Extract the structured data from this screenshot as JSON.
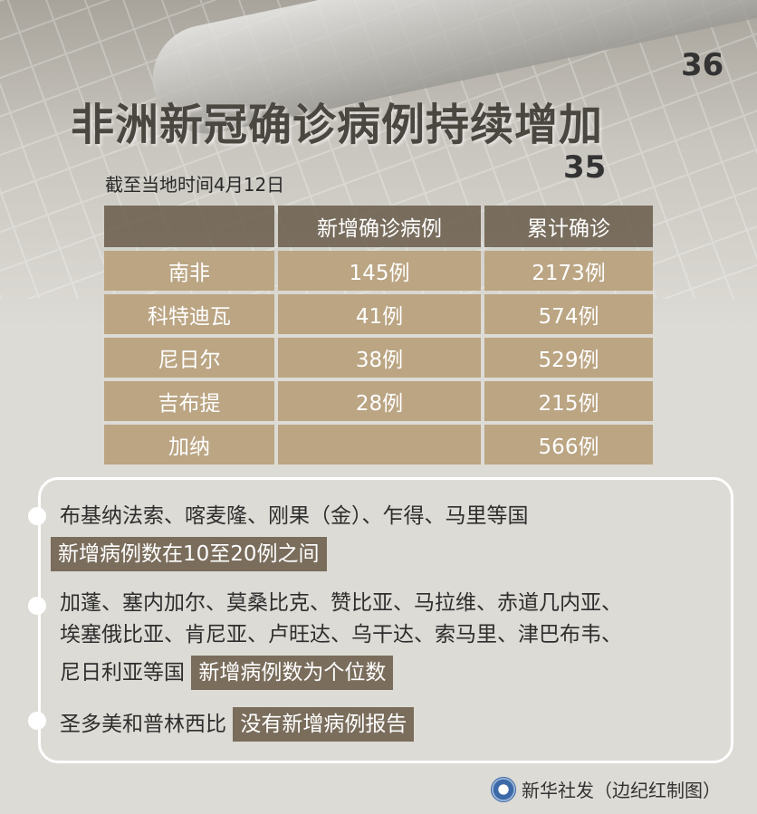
{
  "header": {
    "title": "非洲新冠确诊病例持续增加",
    "subtitle": "截至当地时间4月12日",
    "thermometer_numbers": [
      "36",
      "35"
    ]
  },
  "table": {
    "columns": [
      "",
      "新增确诊病例",
      "累计确诊"
    ],
    "rows": [
      {
        "country": "南非",
        "new": "145例",
        "total": "2173例"
      },
      {
        "country": "科特迪瓦",
        "new": "41例",
        "total": "574例"
      },
      {
        "country": "尼日尔",
        "new": "38例",
        "total": "529例"
      },
      {
        "country": "吉布提",
        "new": "28例",
        "total": "215例"
      },
      {
        "country": "加纳",
        "new": "",
        "total": "566例"
      }
    ]
  },
  "notes": [
    {
      "lines": [
        "布基纳法索、喀麦隆、刚果（金）、乍得、马里等国"
      ],
      "highlight": "新增病例数在10至20例之间"
    },
    {
      "lines": [
        "加蓬、塞内加尔、莫桑比克、赞比亚、马拉维、赤道几内亚、",
        "埃塞俄比亚、肯尼亚、卢旺达、乌干达、索马里、津巴布韦、",
        "尼日利亚等国"
      ],
      "highlight": "新增病例数为个位数"
    },
    {
      "lines": [
        "圣多美和普林西比"
      ],
      "highlight": "没有新增病例报告"
    }
  ],
  "footer": {
    "credit": "新华社发（边纪红制图）",
    "logo": "xinhua-logo"
  },
  "colors": {
    "header_cell": "#695c4a",
    "body_cell": "#bba583",
    "highlight": "#7a6d5c"
  }
}
